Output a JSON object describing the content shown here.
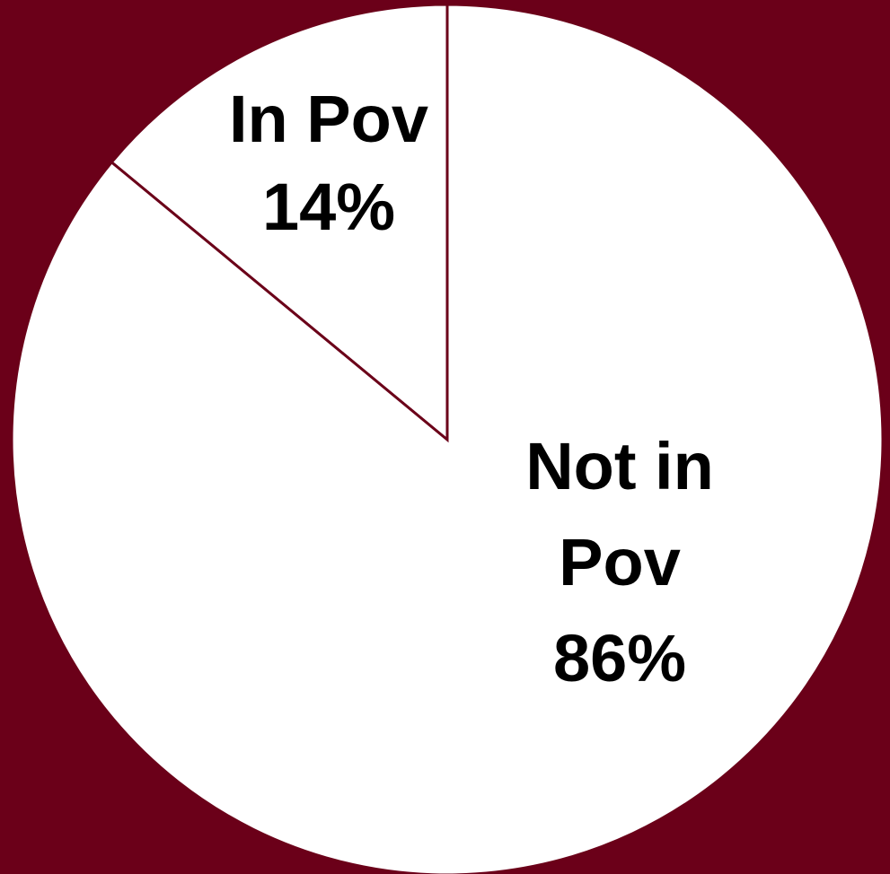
{
  "chart_data": {
    "type": "pie",
    "slices": [
      {
        "label_lines": [
          "In Pov",
          "14%"
        ],
        "value": 14
      },
      {
        "label_lines": [
          "Not in",
          "Pov",
          "86%"
        ],
        "value": 86
      }
    ],
    "start": "12 o'clock",
    "direction": "counter-clockwise",
    "legend": "none"
  },
  "colors": {
    "background": "#6b0019",
    "slice_fill": "#ffffff",
    "slice_border": "#6b0019",
    "label_text": "#000000"
  }
}
